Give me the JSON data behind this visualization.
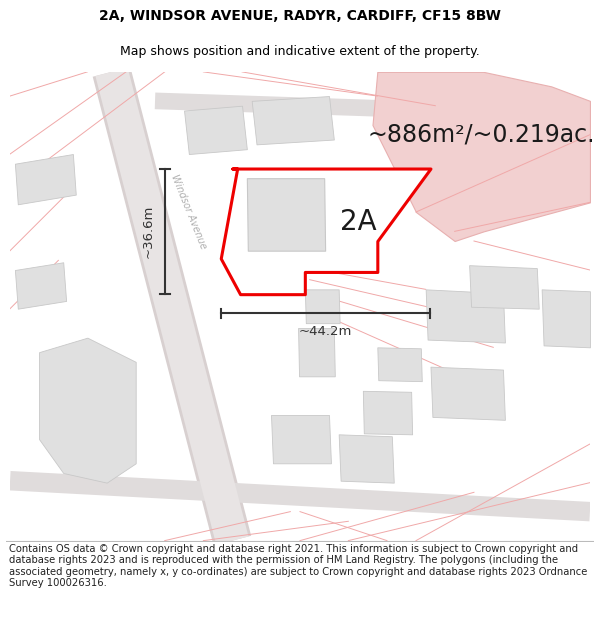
{
  "title_line1": "2A, WINDSOR AVENUE, RADYR, CARDIFF, CF15 8BW",
  "title_line2": "Map shows position and indicative extent of the property.",
  "area_text": "~886m²/~0.219ac.",
  "label_2A": "2A",
  "dim_width": "~44.2m",
  "dim_height": "~36.6m",
  "road_label": "Windsor Avenue",
  "footer_text": "Contains OS data © Crown copyright and database right 2021. This information is subject to Crown copyright and database rights 2023 and is reproduced with the permission of HM Land Registry. The polygons (including the associated geometry, namely x, y co-ordinates) are subject to Crown copyright and database rights 2023 Ordnance Survey 100026316.",
  "map_bg": "#ffffff",
  "plot_fill": "#ffffff",
  "plot_edge": "#ee0000",
  "building_fill": "#e0e0e0",
  "building_edge": "#c8c8c8",
  "pink_fill": "#f2d0d0",
  "pink_edge": "#e8b0b0",
  "road_color": "#e0d8d8",
  "boundary_color": "#f0a8a8",
  "dim_color": "#333333",
  "road_label_color": "#b0b0b0",
  "title_fontsize": 10,
  "subtitle_fontsize": 9,
  "label_fontsize": 20,
  "area_fontsize": 17,
  "dim_fontsize": 9.5,
  "road_label_fontsize": 7,
  "footer_fontsize": 7.2
}
